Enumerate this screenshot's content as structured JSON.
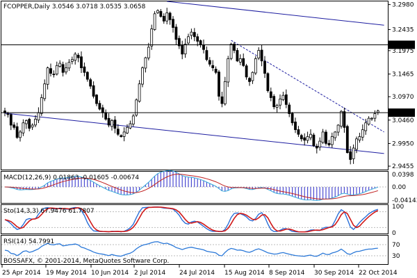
{
  "window": {
    "header": "FCOPPER,Daily  3.0546 3.0718 3.0535 3.0658",
    "copyright": "BOSSAFX, © 2001-2014, MetaQuotes Software Corp."
  },
  "chart_data": {
    "type": "candlestick",
    "symbol": "FCOPPER",
    "timeframe": "Daily",
    "ohlc_last": {
      "open": 3.0546,
      "high": 3.0718,
      "low": 3.0535,
      "close": 3.0658
    },
    "price_ticks": [
      "3.2980",
      "3.2435",
      "3.1975",
      "3.1465",
      "3.0970",
      "3.0460",
      "2.9950",
      "2.9455"
    ],
    "price_range": [
      2.938,
      3.305
    ],
    "marked_levels": [
      {
        "label": "3.2103",
        "value": 3.2103,
        "color": "#000000"
      },
      {
        "label": "3.0622",
        "value": 3.0622,
        "color": "#000000"
      }
    ],
    "date_ticks": [
      "25 Apr 2014",
      "19 May 2014",
      "10 Jun 2014",
      "2 Jul 2014",
      "24 Jul 2014",
      "15 Aug 2014",
      "8 Sep 2014",
      "30 Sep 2014",
      "22 Oct 2014"
    ],
    "trendlines": [
      {
        "name": "upper-channel",
        "style": "solid",
        "from": {
          "bar": 53,
          "price": 3.305
        },
        "to": {
          "bar": 124,
          "price": 3.253
        }
      },
      {
        "name": "lower-channel",
        "style": "solid",
        "from": {
          "bar": 0,
          "price": 3.061
        },
        "to": {
          "bar": 124,
          "price": 2.973
        }
      },
      {
        "name": "resistance",
        "style": "dashed",
        "from": {
          "bar": 74,
          "price": 3.22
        },
        "to": {
          "bar": 124,
          "price": 3.02
        }
      }
    ],
    "closes": [
      3.062,
      3.058,
      3.035,
      3.03,
      3.008,
      3.02,
      3.04,
      3.045,
      3.028,
      3.035,
      3.048,
      3.062,
      3.095,
      3.125,
      3.16,
      3.148,
      3.145,
      3.165,
      3.17,
      3.15,
      3.16,
      3.172,
      3.178,
      3.19,
      3.182,
      3.16,
      3.15,
      3.135,
      3.12,
      3.098,
      3.082,
      3.07,
      3.062,
      3.048,
      3.035,
      3.045,
      3.028,
      3.015,
      3.01,
      3.02,
      3.03,
      3.038,
      3.055,
      3.09,
      3.125,
      3.16,
      3.182,
      3.205,
      3.245,
      3.278,
      3.285,
      3.272,
      3.262,
      3.28,
      3.265,
      3.248,
      3.222,
      3.208,
      3.19,
      3.212,
      3.228,
      3.238,
      3.228,
      3.218,
      3.21,
      3.2,
      3.178,
      3.168,
      3.16,
      3.15,
      3.098,
      3.082,
      3.13,
      3.18,
      3.212,
      3.198,
      3.175,
      3.18,
      3.165,
      3.14,
      3.13,
      3.15,
      3.18,
      3.198,
      3.175,
      3.148,
      3.11,
      3.095,
      3.075,
      3.078,
      3.092,
      3.1,
      3.08,
      3.06,
      3.04,
      3.025,
      3.015,
      3.005,
      3.002,
      3.01,
      3.015,
      2.99,
      2.985,
      3.0,
      3.02,
      2.995,
      2.992,
      3.01,
      3.02,
      3.035,
      3.065,
      3.03,
      2.975,
      2.96,
      2.985,
      3.005,
      3.01,
      3.025,
      3.04,
      3.05,
      3.05,
      3.06,
      3.066
    ],
    "indicators": {
      "macd": {
        "label": "MACD(12,26,9) 0.01863 -0.01605 -0.00674",
        "ticks": [
          "0.0398",
          "0.00",
          "-0.04143"
        ],
        "range": [
          -0.048,
          0.046
        ]
      },
      "stochastic": {
        "label": "Sto(14,3,3) 67.9476 61.7807",
        "ticks": [
          "100",
          "0"
        ],
        "range": [
          0,
          100
        ]
      },
      "rsi": {
        "label": "RSI(14) 54.7991",
        "ticks": [
          "70",
          "30"
        ],
        "range": [
          0,
          100
        ]
      }
    }
  }
}
